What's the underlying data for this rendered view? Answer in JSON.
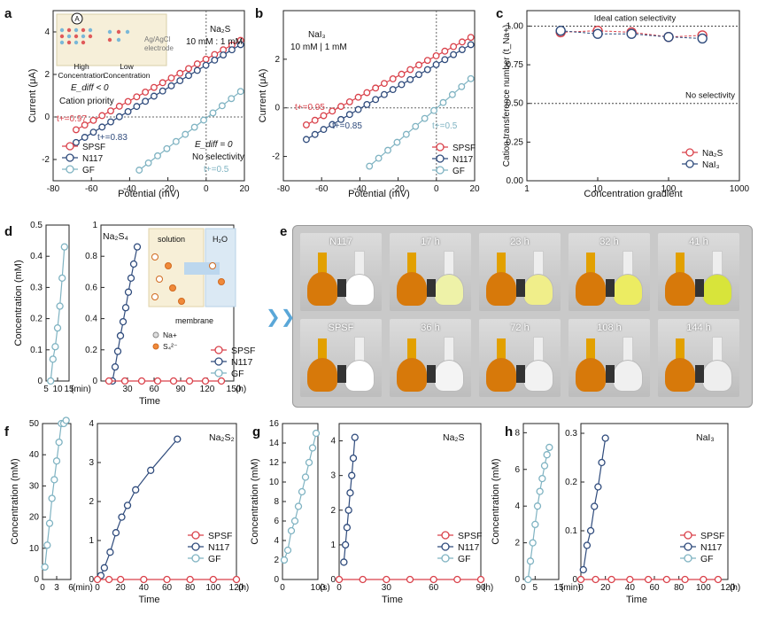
{
  "colors": {
    "spsf": "#d9414a",
    "n117": "#2f4b7c",
    "gf": "#7fb3c2"
  },
  "panel_letters": [
    "a",
    "b",
    "c",
    "d",
    "e",
    "f",
    "g",
    "h"
  ],
  "photo_labels": {
    "top": [
      "N117",
      "17 h",
      "23 h",
      "32 h",
      "41 h"
    ],
    "bottom": [
      "SPSF",
      "36 h",
      "72 h",
      "108 h",
      "144 h"
    ]
  },
  "chart_data": [
    {
      "id": "a",
      "type": "line",
      "xlabel": "Potential (mV)",
      "ylabel": "Current (μA)",
      "xlim": [
        -80,
        20
      ],
      "ylim": [
        -3,
        5
      ],
      "xticks": [
        -80,
        -60,
        -40,
        -20,
        0,
        20
      ],
      "yticks": [
        -2,
        0,
        2,
        4
      ],
      "inset_text": {
        "species": "Na2S",
        "ratio": "10 mM : 1 mM",
        "high": "High\nConcentration",
        "low": "Low\nConcentration",
        "electrode": "Ag/AgCl\nelectrode"
      },
      "annotations": [
        "E_diff < 0",
        "Cation priority",
        "t+=0.97",
        "t+=0.83",
        "E_diff = 0",
        "No selectivity",
        "t+=0.5"
      ],
      "series": [
        {
          "name": "SPSF",
          "x_range": [
            -68,
            18
          ],
          "y_range": [
            -0.6,
            3.6
          ]
        },
        {
          "name": "N117",
          "x_range": [
            -68,
            18
          ],
          "y_range": [
            -1.2,
            3.4
          ]
        },
        {
          "name": "GF",
          "x_range": [
            -35,
            18
          ],
          "y_range": [
            -2.5,
            1.2
          ]
        }
      ],
      "legend": [
        "SPSF",
        "N117",
        "GF"
      ]
    },
    {
      "id": "b",
      "type": "line",
      "xlabel": "Potential (mV)",
      "ylabel": "Current (μA)",
      "xlim": [
        -80,
        20
      ],
      "ylim": [
        -3,
        4
      ],
      "xticks": [
        -80,
        -60,
        -40,
        -20,
        0,
        20
      ],
      "yticks": [
        -2,
        0,
        2
      ],
      "title_text": [
        "NaI3",
        "10 mM | 1 mM"
      ],
      "annotations": [
        "t+=0.95",
        "t+=0.85",
        "t+=0.5"
      ],
      "series": [
        {
          "name": "SPSF",
          "x_range": [
            -68,
            18
          ],
          "y_range": [
            -0.7,
            2.9
          ]
        },
        {
          "name": "N117",
          "x_range": [
            -68,
            18
          ],
          "y_range": [
            -1.3,
            2.6
          ]
        },
        {
          "name": "GF",
          "x_range": [
            -35,
            18
          ],
          "y_range": [
            -2.4,
            1.2
          ]
        }
      ],
      "legend": [
        "SPSF",
        "N117",
        "GF"
      ]
    },
    {
      "id": "c",
      "type": "scatter",
      "xlabel": "Concentration gradient",
      "ylabel": "Cation transference number (t_Na+)",
      "xscale": "log",
      "xlim": [
        1,
        1000
      ],
      "ylim": [
        0,
        1.1
      ],
      "xticks": [
        1,
        10,
        100,
        1000
      ],
      "yticks": [
        0.0,
        0.25,
        0.5,
        0.75,
        1.0
      ],
      "reference_lines": [
        {
          "y": 1.0,
          "label": "Ideal cation selectivity"
        },
        {
          "y": 0.5,
          "label": "No selectivity"
        }
      ],
      "series": [
        {
          "name": "Na2S",
          "x": [
            3,
            10,
            30,
            100,
            300
          ],
          "y": [
            0.96,
            0.97,
            0.96,
            0.93,
            0.94
          ]
        },
        {
          "name": "NaI3",
          "x": [
            3,
            10,
            30,
            100,
            300
          ],
          "y": [
            0.97,
            0.95,
            0.95,
            0.93,
            0.92
          ]
        }
      ],
      "legend": [
        "Na2S",
        "NaI3"
      ]
    },
    {
      "id": "d",
      "type": "line",
      "ylabel": "Concentration (mM)",
      "xlabel": "Time",
      "left": {
        "xlim": [
          5,
          15
        ],
        "xticks": [
          5,
          10,
          15
        ],
        "unit": "(min)",
        "ylim": [
          0,
          0.5
        ],
        "yticks": [
          0.0,
          0.1,
          0.2,
          0.3,
          0.4,
          0.5
        ],
        "series": [
          {
            "name": "GF",
            "x": [
              7,
              8,
              9,
              10,
              11,
              12,
              13
            ],
            "y": [
              0.0,
              0.07,
              0.11,
              0.17,
              0.24,
              0.33,
              0.43
            ]
          }
        ]
      },
      "right": {
        "xlim": [
          0,
          150
        ],
        "xticks": [
          30,
          60,
          90,
          120,
          150
        ],
        "unit": "(h)",
        "ylim": [
          0,
          1.0
        ],
        "yticks": [
          0.0,
          0.2,
          0.4,
          0.6,
          0.8,
          1.0
        ],
        "series": [
          {
            "name": "N117",
            "x": [
              13,
              16,
              19,
              22,
              25,
              28,
              31,
              34,
              37,
              41
            ],
            "y": [
              0.0,
              0.09,
              0.19,
              0.29,
              0.38,
              0.47,
              0.57,
              0.66,
              0.75,
              0.86
            ]
          },
          {
            "name": "SPSF",
            "x": [
              9,
              27,
              46,
              64,
              82,
              100,
              118,
              136
            ],
            "y": [
              0,
              0,
              0,
              0,
              0,
              0,
              0,
              0
            ]
          }
        ]
      },
      "species": "Na2S4",
      "inset_labels": [
        "solution",
        "H2O",
        "membrane",
        "Na+",
        "S4 2-"
      ],
      "legend": [
        "SPSF",
        "N117",
        "GF"
      ]
    },
    {
      "id": "f",
      "type": "line",
      "ylabel": "Concentration (mM)",
      "xlabel": "Time",
      "left": {
        "xlim": [
          0,
          6
        ],
        "xticks": [
          0,
          3,
          6
        ],
        "unit": "(min)",
        "ylim": [
          0,
          50
        ],
        "yticks": [
          0,
          10,
          20,
          30,
          40,
          50
        ],
        "series": [
          {
            "name": "GF",
            "x": [
              0.5,
              1,
              1.5,
              2,
              2.5,
              3,
              3.5,
              4,
              4.5,
              5
            ],
            "y": [
              4,
              11,
              18,
              26,
              32,
              38,
              44,
              50,
              50,
              51
            ]
          }
        ]
      },
      "right": {
        "xlim": [
          0,
          120
        ],
        "xticks": [
          0,
          20,
          40,
          60,
          80,
          100,
          120
        ],
        "unit": "(h)",
        "ylim": [
          0,
          4
        ],
        "yticks": [
          0,
          1,
          2,
          3,
          4
        ],
        "series": [
          {
            "name": "N117",
            "x": [
              3,
              6,
              11,
              16,
              21,
              26,
              33,
              46,
              69
            ],
            "y": [
              0.1,
              0.3,
              0.7,
              1.2,
              1.6,
              1.9,
              2.3,
              2.8,
              3.6
            ]
          },
          {
            "name": "SPSF",
            "x": [
              0,
              10,
              20,
              40,
              60,
              80,
              100,
              120
            ],
            "y": [
              0,
              0,
              0,
              0,
              0,
              0,
              0,
              0
            ]
          }
        ]
      },
      "species": "Na2S2",
      "legend": [
        "SPSF",
        "N117",
        "GF"
      ]
    },
    {
      "id": "g",
      "type": "line",
      "ylabel": "Concentration (mM)",
      "xlabel": "Time",
      "left": {
        "xlim": [
          0,
          100
        ],
        "xticks": [
          0,
          100
        ],
        "unit": "(s)",
        "ylim": [
          0,
          16
        ],
        "yticks": [
          0,
          2,
          4,
          6,
          8,
          10,
          12,
          14,
          16
        ],
        "series": [
          {
            "name": "GF",
            "x": [
              5,
              15,
              25,
              35,
              45,
              55,
              65,
              75,
              85,
              95
            ],
            "y": [
              2,
              3,
              5,
              6,
              7.5,
              9,
              10.5,
              12,
              13.5,
              15
            ]
          }
        ]
      },
      "right": {
        "xlim": [
          0,
          90
        ],
        "xticks": [
          0,
          30,
          60,
          90
        ],
        "unit": "(h)",
        "ylim": [
          0,
          4.5
        ],
        "yticks": [
          0,
          1,
          2,
          3,
          4
        ],
        "series": [
          {
            "name": "N117",
            "x": [
              3,
              4,
              5,
              6,
              7,
              8,
              9,
              10
            ],
            "y": [
              0.5,
              1.0,
              1.5,
              2.0,
              2.5,
              3.0,
              3.5,
              4.1
            ]
          },
          {
            "name": "SPSF",
            "x": [
              0,
              15,
              30,
              45,
              60,
              75,
              90
            ],
            "y": [
              0,
              0,
              0,
              0,
              0,
              0,
              0
            ]
          }
        ]
      },
      "species": "Na2S",
      "legend": [
        "SPSF",
        "N117",
        "GF"
      ]
    },
    {
      "id": "h",
      "type": "line",
      "ylabel": "Concentration (mM)",
      "xlabel": "Time",
      "left": {
        "xlim": [
          0,
          15
        ],
        "xticks": [
          0,
          5,
          15
        ],
        "unit": "(min)",
        "ylim": [
          0,
          8.5
        ],
        "yticks": [
          0,
          2,
          4,
          6,
          8
        ],
        "series": [
          {
            "name": "GF",
            "x": [
              2,
              3,
              4,
              5,
              6,
              7,
              8,
              9,
              10,
              11
            ],
            "y": [
              0,
              1,
              2,
              3,
              4,
              4.8,
              5.5,
              6.2,
              6.8,
              7.2
            ]
          }
        ]
      },
      "right": {
        "xlim": [
          0,
          120
        ],
        "xticks": [
          0,
          20,
          40,
          60,
          80,
          100,
          120
        ],
        "unit": "(h)",
        "ylim": [
          0,
          0.32
        ],
        "yticks": [
          0.0,
          0.1,
          0.2,
          0.3
        ],
        "series": [
          {
            "name": "N117",
            "x": [
              2,
              5,
              8,
              11,
              14,
              17,
              20
            ],
            "y": [
              0.02,
              0.07,
              0.1,
              0.15,
              0.19,
              0.24,
              0.29
            ]
          },
          {
            "name": "SPSF",
            "x": [
              0,
              12,
              25,
              40,
              55,
              70,
              85,
              100,
              112
            ],
            "y": [
              0,
              0,
              0,
              0,
              0,
              0,
              0,
              0,
              0
            ]
          }
        ]
      },
      "species": "NaI3",
      "legend": [
        "SPSF",
        "N117",
        "GF"
      ]
    }
  ]
}
